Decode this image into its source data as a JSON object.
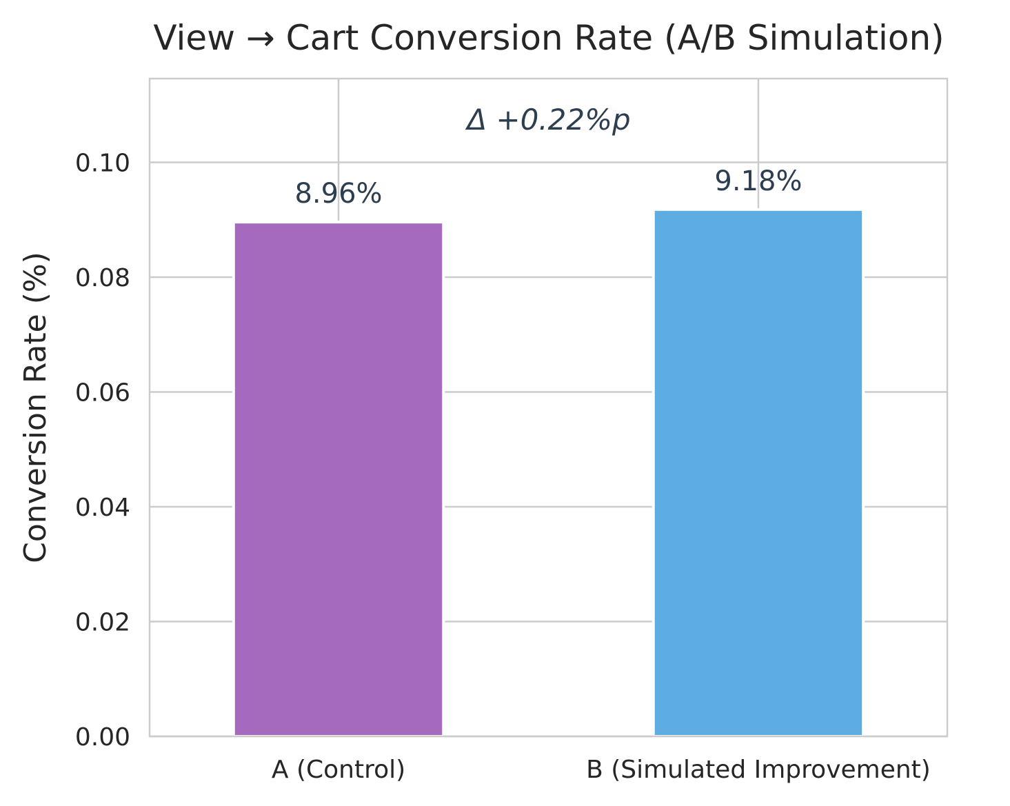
{
  "chart_data": {
    "type": "bar",
    "title": "View → Cart Conversion Rate (A/B Simulation)",
    "xlabel": "",
    "ylabel": "Conversion Rate (%)",
    "categories": [
      "A (Control)",
      "B (Simulated Improvement)"
    ],
    "values": [
      0.0896,
      0.0918
    ],
    "value_labels": [
      "8.96%",
      "9.18%"
    ],
    "colors": [
      "#a569bd",
      "#5dade2"
    ],
    "ylim": [
      0,
      0.1146
    ],
    "yticks": [
      0.0,
      0.02,
      0.04,
      0.06,
      0.08,
      0.1
    ],
    "ytick_labels": [
      "0.00",
      "0.02",
      "0.04",
      "0.06",
      "0.08",
      "0.10"
    ],
    "annotation": "Δ +0.22%p",
    "grid": true,
    "legend": "none"
  }
}
